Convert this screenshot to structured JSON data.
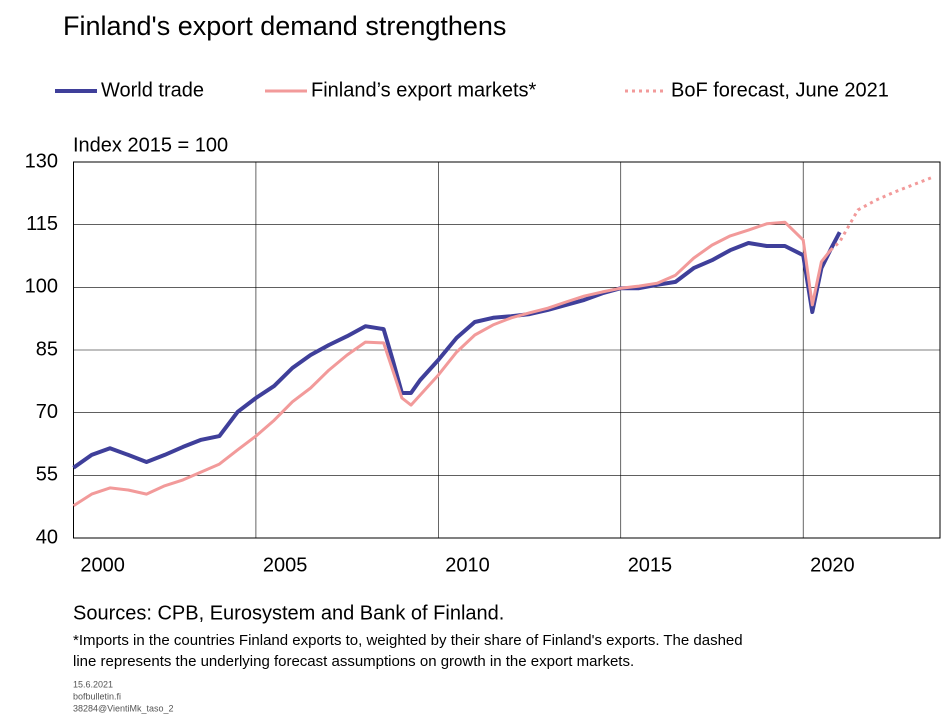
{
  "chart_data": {
    "type": "line",
    "title": "Finland's export demand strengthens",
    "y_axis_label": "Index 2015 = 100",
    "sources": "Sources: CPB, Eurosystem and Bank of Finland.",
    "footnote": [
      "*Imports in the countries Finland exports to, weighted by their share of Finland's exports. The dashed",
      "line represents the underlying forecast assumptions on growth in the export markets."
    ],
    "footer": [
      "15.6.2021",
      "bofbulletin.fi",
      "38284@VientiMk_taso_2"
    ],
    "xlim": [
      2000,
      2023.75
    ],
    "xticks": [
      2000,
      2005,
      2010,
      2015,
      2020
    ],
    "ylim": [
      40,
      130
    ],
    "yticks": [
      40,
      55,
      70,
      85,
      100,
      115,
      130
    ],
    "grid": true,
    "x": [
      2000,
      2000.5,
      2001,
      2001.5,
      2002,
      2002.5,
      2003,
      2003.5,
      2004,
      2004.5,
      2005,
      2005.5,
      2006,
      2006.5,
      2007,
      2007.5,
      2008,
      2008.5,
      2008.75,
      2009,
      2009.25,
      2009.5,
      2010,
      2010.5,
      2011,
      2011.5,
      2012,
      2012.5,
      2013,
      2013.5,
      2014,
      2014.5,
      2015,
      2015.5,
      2016,
      2016.5,
      2017,
      2017.5,
      2018,
      2018.5,
      2019,
      2019.5,
      2020,
      2020.25,
      2020.5,
      2020.75,
      2021,
      2021.5,
      2022,
      2022.5,
      2023,
      2023.5
    ],
    "series": [
      {
        "name": "World trade",
        "color": "#3f3f9a",
        "width": 4,
        "dashed": false,
        "values": [
          56.8,
          59.9,
          61.5,
          59.9,
          58.2,
          59.9,
          61.8,
          63.5,
          64.4,
          70.2,
          73.5,
          76.4,
          80.7,
          83.8,
          86.2,
          88.3,
          90.7,
          90.0,
          82.6,
          74.7,
          74.7,
          77.8,
          82.6,
          87.9,
          91.7,
          92.7,
          93.1,
          93.6,
          94.6,
          95.8,
          97.0,
          98.6,
          99.8,
          99.8,
          100.6,
          101.3,
          104.6,
          106.5,
          108.9,
          110.6,
          109.9,
          109.9,
          107.7,
          94.1,
          104.6,
          109.0,
          113.2,
          null,
          null,
          null,
          null,
          null
        ]
      },
      {
        "name": "Finland’s export markets*",
        "color": "#f29a9a",
        "width": 3,
        "dashed": false,
        "values": [
          47.7,
          50.5,
          52.0,
          51.5,
          50.5,
          52.5,
          53.9,
          55.8,
          57.7,
          61.1,
          64.4,
          68.2,
          72.6,
          75.9,
          80.2,
          83.8,
          86.9,
          86.7,
          80.2,
          73.5,
          71.8,
          74.2,
          79.0,
          84.5,
          88.6,
          91.0,
          92.7,
          93.9,
          95.0,
          96.5,
          97.9,
          98.9,
          99.8,
          100.3,
          101.0,
          102.9,
          107.0,
          110.1,
          112.3,
          113.7,
          115.2,
          115.6,
          111.3,
          95.8,
          106.1,
          108.9,
          null,
          null,
          null,
          null,
          null,
          null
        ]
      },
      {
        "name": "BoF forecast, June 2021",
        "color": "#f29a9a",
        "width": 3,
        "dashed": true,
        "values": [
          null,
          null,
          null,
          null,
          null,
          null,
          null,
          null,
          null,
          null,
          null,
          null,
          null,
          null,
          null,
          null,
          null,
          null,
          null,
          null,
          null,
          null,
          null,
          null,
          null,
          null,
          null,
          null,
          null,
          null,
          null,
          null,
          null,
          null,
          null,
          null,
          null,
          null,
          null,
          null,
          null,
          null,
          null,
          null,
          null,
          108.9,
          110.9,
          118.5,
          120.9,
          122.8,
          124.5,
          126.2
        ]
      }
    ]
  }
}
